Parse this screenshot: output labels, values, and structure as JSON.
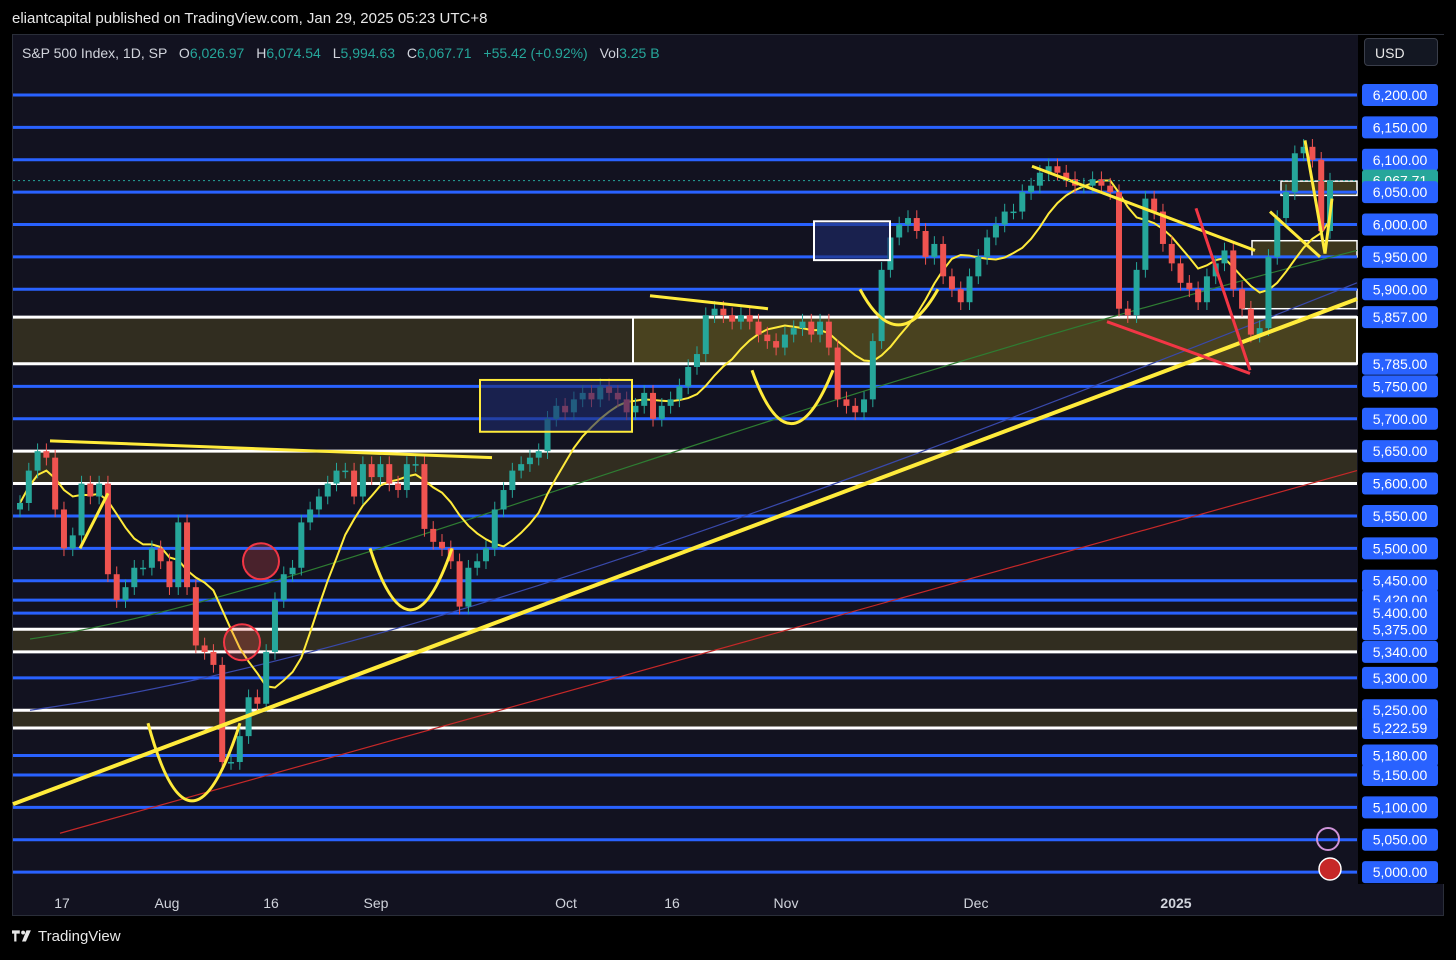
{
  "publish": {
    "text": "eliantcapital published on TradingView.com, Jan 29, 2025 05:23 UTC+8"
  },
  "legend": {
    "symbol": "S&P 500 Index, 1D, SP",
    "open_label": "O",
    "open": "6,026.97",
    "high_label": "H",
    "high": "6,074.54",
    "low_label": "L",
    "low": "5,994.63",
    "close_label": "C",
    "close": "6,067.71",
    "change": "+55.42 (+0.92%)",
    "vol_label": "Vol",
    "vol": "3.25 B"
  },
  "currency": "USD",
  "footer": {
    "brand": "TradingView"
  },
  "colors": {
    "up": "#26a69a",
    "down": "#ef5350",
    "blue_line": "#2962ff",
    "yellow": "#ffeb3b",
    "red_marker": "#f23645",
    "price_tag": "#2962ff",
    "last_price_tag": "#26a69a",
    "zone_fill": "#4a4420",
    "sma_green": "#1b5e20",
    "sma_blue": "#1a237e",
    "sma_red": "#b71c1c"
  },
  "chart_data": {
    "type": "candlestick",
    "title": "S&P 500 Index, 1D, SP",
    "ylim": [
      4960,
      6260
    ],
    "x_tick_labels": [
      "17",
      "Aug",
      "16",
      "Sep",
      "Oct",
      "16",
      "Nov",
      "Dec",
      "2025"
    ],
    "y_axis_labels": [
      {
        "value": 6200,
        "text": "6,200.00"
      },
      {
        "value": 6150,
        "text": "6,150.00"
      },
      {
        "value": 6100,
        "text": "6,100.00"
      },
      {
        "value": 6067.71,
        "text": "6,067.71",
        "last": true
      },
      {
        "value": 6050,
        "text": "6,050.00"
      },
      {
        "value": 6000,
        "text": "6,000.00"
      },
      {
        "value": 5950,
        "text": "5,950.00"
      },
      {
        "value": 5900,
        "text": "5,900.00"
      },
      {
        "value": 5857,
        "text": "5,857.00"
      },
      {
        "value": 5785,
        "text": "5,785.00"
      },
      {
        "value": 5750,
        "text": "5,750.00"
      },
      {
        "value": 5700,
        "text": "5,700.00"
      },
      {
        "value": 5650,
        "text": "5,650.00"
      },
      {
        "value": 5600,
        "text": "5,600.00"
      },
      {
        "value": 5550,
        "text": "5,550.00"
      },
      {
        "value": 5500,
        "text": "5,500.00"
      },
      {
        "value": 5450,
        "text": "5,450.00"
      },
      {
        "value": 5420,
        "text": "5,420.00"
      },
      {
        "value": 5400,
        "text": "5,400.00"
      },
      {
        "value": 5375,
        "text": "5,375.00"
      },
      {
        "value": 5340,
        "text": "5,340.00"
      },
      {
        "value": 5300,
        "text": "5,300.00"
      },
      {
        "value": 5250,
        "text": "5,250.00"
      },
      {
        "value": 5222.59,
        "text": "5,222.59"
      },
      {
        "value": 5180,
        "text": "5,180.00"
      },
      {
        "value": 5150,
        "text": "5,150.00"
      },
      {
        "value": 5100,
        "text": "5,100.00"
      },
      {
        "value": 5050,
        "text": "5,050.00"
      },
      {
        "value": 5000,
        "text": "5,000.00"
      }
    ],
    "horizontal_levels": [
      6200,
      6150,
      6100,
      6050,
      6000,
      5950,
      5900,
      5857,
      5785,
      5750,
      5700,
      5650,
      5600,
      5550,
      5500,
      5450,
      5420,
      5400,
      5375,
      5340,
      5300,
      5250,
      5222.59,
      5180,
      5150,
      5100,
      5050,
      5000
    ],
    "candles_close": [
      5570,
      5620,
      5650,
      5640,
      5560,
      5500,
      5520,
      5600,
      5580,
      5600,
      5460,
      5420,
      5440,
      5470,
      5470,
      5500,
      5480,
      5440,
      5540,
      5440,
      5350,
      5340,
      5320,
      5170,
      5170,
      5210,
      5270,
      5260,
      5340,
      5420,
      5460,
      5470,
      5540,
      5560,
      5580,
      5600,
      5620,
      5620,
      5580,
      5630,
      5610,
      5630,
      5600,
      5590,
      5630,
      5630,
      5530,
      5510,
      5500,
      5480,
      5410,
      5470,
      5480,
      5500,
      5560,
      5590,
      5620,
      5630,
      5640,
      5650,
      5700,
      5720,
      5710,
      5730,
      5740,
      5730,
      5750,
      5740,
      5730,
      5710,
      5720,
      5740,
      5700,
      5720,
      5730,
      5750,
      5780,
      5800,
      5860,
      5870,
      5860,
      5850,
      5860,
      5850,
      5830,
      5820,
      5810,
      5830,
      5840,
      5850,
      5830,
      5850,
      5810,
      5730,
      5720,
      5710,
      5730,
      5820,
      5930,
      5980,
      6000,
      6010,
      5990,
      5950,
      5970,
      5920,
      5900,
      5880,
      5920,
      5950,
      5980,
      6000,
      6020,
      6020,
      6050,
      6060,
      6080,
      6090,
      6080,
      6070,
      6060,
      6060,
      6070,
      6060,
      6050,
      5870,
      5860,
      5930,
      6040,
      6020,
      5970,
      5940,
      5910,
      5900,
      5880,
      5920,
      5940,
      5960,
      5900,
      5870,
      5830,
      5840,
      5950,
      6010,
      6050,
      6110,
      6120,
      6100,
      5990,
      6067.71
    ],
    "moving_averages": [
      {
        "color": "yellow",
        "period": "short"
      },
      {
        "color": "green",
        "period": "medium"
      },
      {
        "color": "blue",
        "period": "long"
      },
      {
        "color": "red",
        "period": "longest"
      }
    ]
  }
}
